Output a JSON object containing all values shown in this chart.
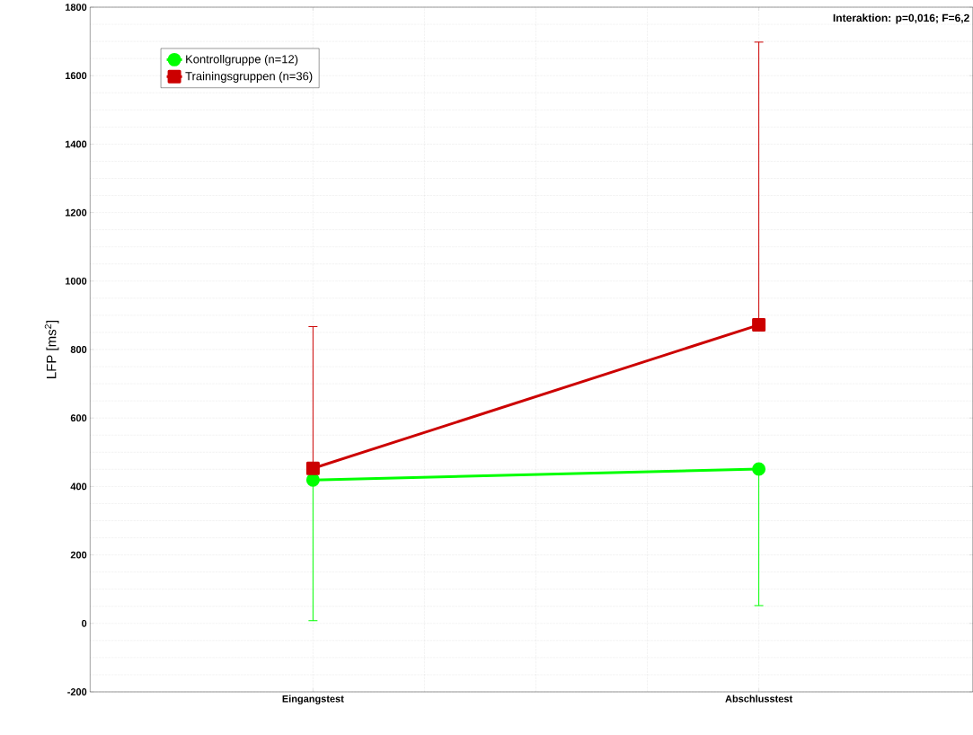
{
  "chart_data": {
    "type": "line",
    "ylabel": "LFP [ms$^{2}$]",
    "categories": [
      "Eingangstest",
      "Abschlusstest"
    ],
    "series": [
      {
        "name": "Kontrollgruppe (n=12)",
        "color": "#00ff00",
        "values": [
          419,
          451
        ],
        "errors": [
          [
            8,
            419
          ],
          [
            52,
            451
          ]
        ],
        "marker": "circle"
      },
      {
        "name": "Trainingsgruppen (n=36)",
        "color": "#cc0000",
        "values": [
          453,
          872
        ],
        "errors": [
          [
            453,
            867
          ],
          [
            872,
            1698
          ]
        ],
        "marker": "square"
      }
    ],
    "ylim": [
      -200,
      1800
    ],
    "yticks": [
      -200,
      0,
      200,
      400,
      600,
      800,
      1000,
      1200,
      1400,
      1600,
      1800
    ],
    "grid": true,
    "legend": "top left",
    "line_style": "solid",
    "annotations": [
      "Interaktion: p=0,016; F=6,2"
    ]
  }
}
